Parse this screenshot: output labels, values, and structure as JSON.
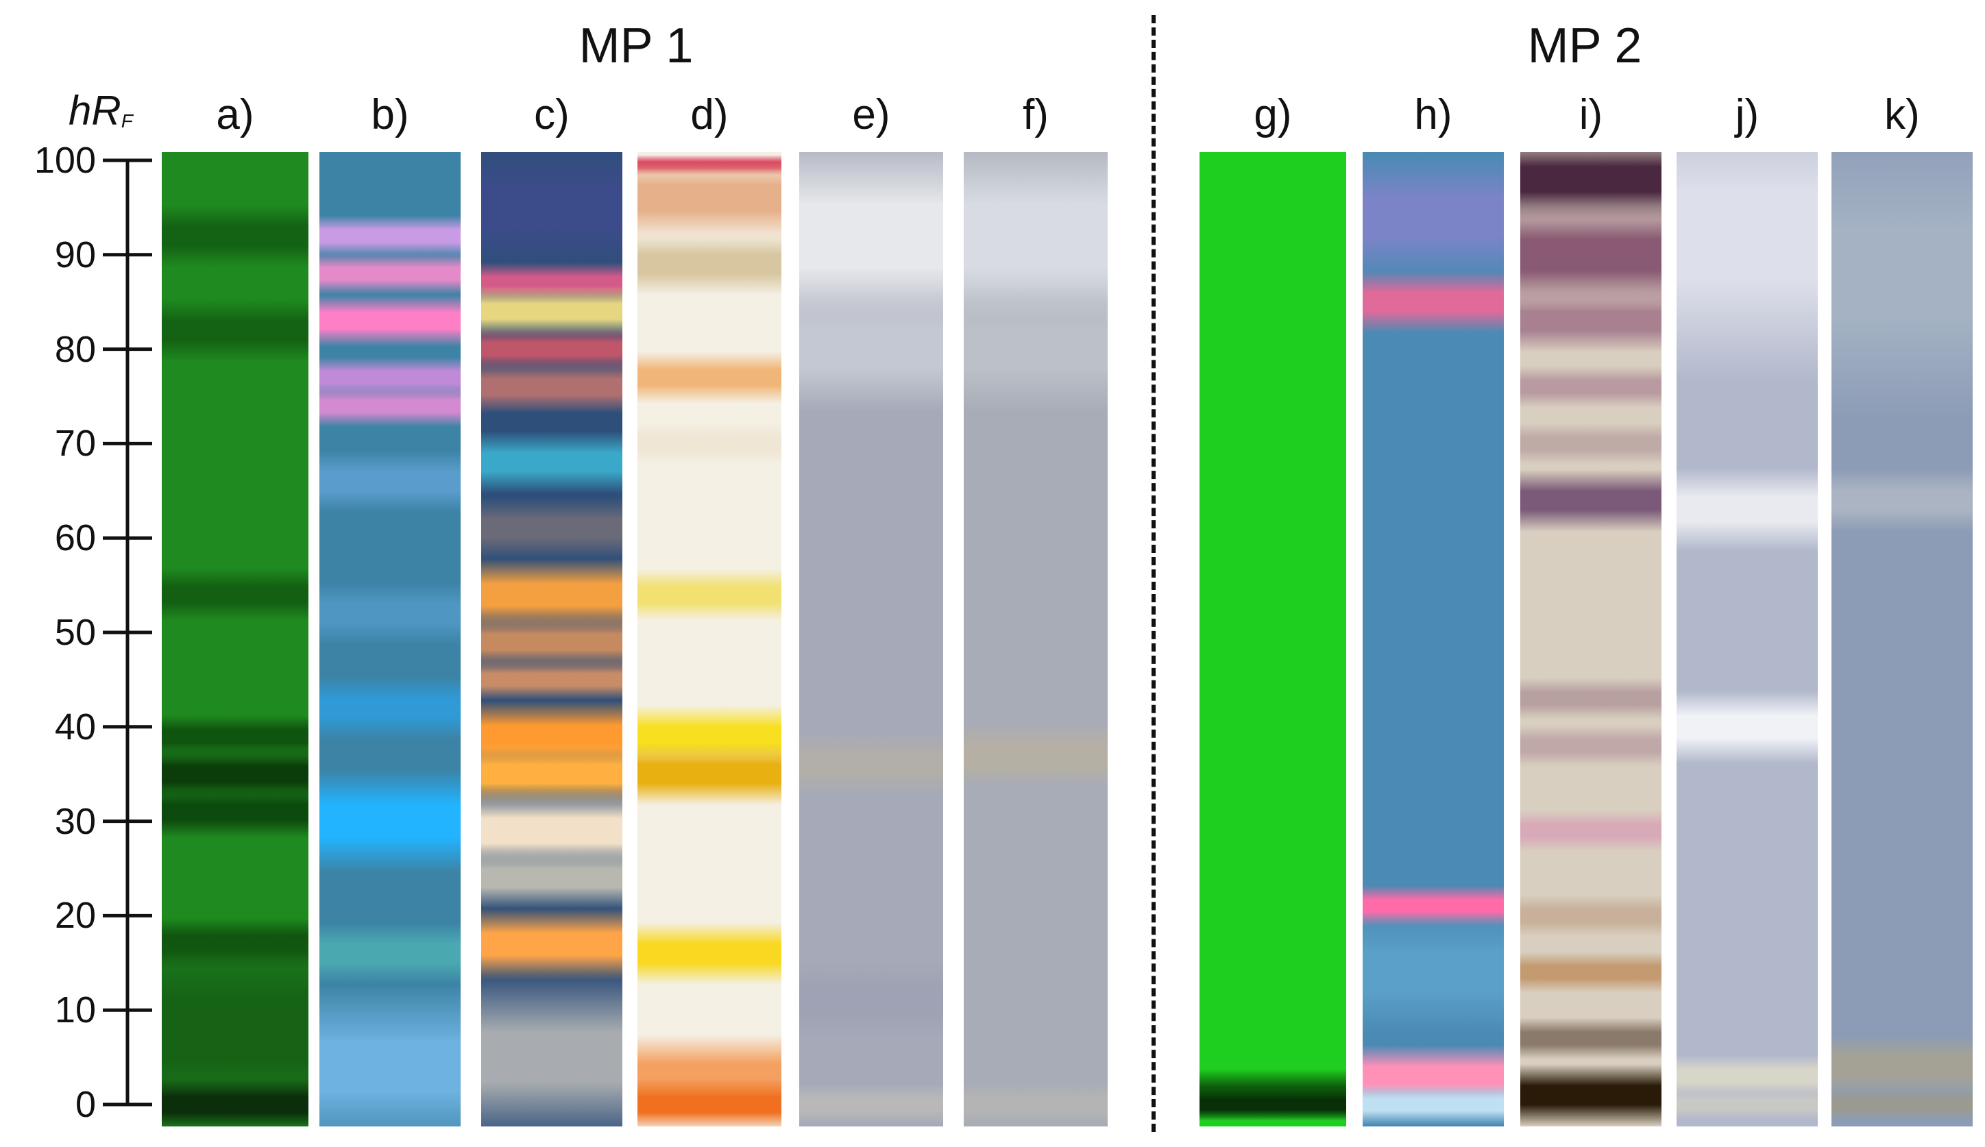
{
  "figure": {
    "groups": [
      {
        "title": "MP 1"
      },
      {
        "title": "MP 2"
      }
    ],
    "axis": {
      "label_main": "hR",
      "label_sub": "F",
      "ticks": [
        "100",
        "90",
        "80",
        "70",
        "60",
        "50",
        "40",
        "30",
        "20",
        "10",
        "0"
      ],
      "range": [
        0,
        100
      ]
    },
    "lanes": [
      {
        "label": "a)",
        "base": "#1f8a1f",
        "bands": [
          {
            "rf": 92,
            "w": 3,
            "color": "#146214"
          },
          {
            "rf": 82,
            "w": 3,
            "color": "#146214"
          },
          {
            "rf": 54,
            "w": 2.5,
            "color": "#136013"
          },
          {
            "rf": 39,
            "w": 2,
            "color": "#0f540f"
          },
          {
            "rf": 35,
            "w": 2.5,
            "color": "#0a3d0a"
          },
          {
            "rf": 31,
            "w": 2.5,
            "color": "#0d4a0d"
          },
          {
            "rf": 17,
            "w": 2.5,
            "color": "#0f520f"
          },
          {
            "rf": 8,
            "w": 10,
            "color": "#166316"
          },
          {
            "rf": 0,
            "w": 2.5,
            "color": "#0b2f0b"
          }
        ]
      },
      {
        "label": "b)",
        "base": "#3c83a6",
        "bands": [
          {
            "rf": 92,
            "w": 2,
            "color": "#c99be6"
          },
          {
            "rf": 88,
            "w": 2,
            "color": "#e58ac8"
          },
          {
            "rf": 83,
            "w": 2.5,
            "color": "#ff7fc7"
          },
          {
            "rf": 77,
            "w": 2,
            "color": "#c08ad8"
          },
          {
            "rf": 74,
            "w": 2,
            "color": "#d48ad0"
          },
          {
            "rf": 66,
            "w": 3,
            "color": "#5a9ccc"
          },
          {
            "rf": 52,
            "w": 3,
            "color": "#4f96c3"
          },
          {
            "rf": 42,
            "w": 3,
            "color": "#2f9ad6"
          },
          {
            "rf": 30,
            "w": 5,
            "color": "#22b4ff"
          },
          {
            "rf": 16,
            "w": 3,
            "color": "#4aa8b0"
          },
          {
            "rf": 4,
            "w": 8,
            "color": "#6db2e0"
          }
        ]
      },
      {
        "label": "c)",
        "base": "#2e4f7a",
        "bands": [
          {
            "rf": 95,
            "w": 6,
            "color": "#3c4b8a"
          },
          {
            "rf": 87,
            "w": 2,
            "color": "#d45a8a"
          },
          {
            "rf": 84,
            "w": 2.5,
            "color": "#e6d680"
          },
          {
            "rf": 80,
            "w": 2,
            "color": "#c0566a"
          },
          {
            "rf": 76,
            "w": 2.5,
            "color": "#b07070"
          },
          {
            "rf": 68,
            "w": 3,
            "color": "#3aa8c8"
          },
          {
            "rf": 61,
            "w": 3,
            "color": "#6a6a78"
          },
          {
            "rf": 54,
            "w": 3.5,
            "color": "#f5a040"
          },
          {
            "rf": 49,
            "w": 2.5,
            "color": "#c68a60"
          },
          {
            "rf": 45,
            "w": 2,
            "color": "#c88c66"
          },
          {
            "rf": 39,
            "w": 3.5,
            "color": "#ff9a30"
          },
          {
            "rf": 35,
            "w": 3,
            "color": "#ffb040"
          },
          {
            "rf": 29,
            "w": 4,
            "color": "#f2e0c8"
          },
          {
            "rf": 24,
            "w": 3,
            "color": "#b8b8b0"
          },
          {
            "rf": 17,
            "w": 3.5,
            "color": "#ffa548"
          },
          {
            "rf": 5,
            "w": 8,
            "color": "#a8acb0"
          }
        ]
      },
      {
        "label": "d)",
        "base": "#f4f0e4",
        "bands": [
          {
            "rf": 99.5,
            "w": 1,
            "color": "#d8305a"
          },
          {
            "rf": 96,
            "w": 4,
            "color": "#e6b08a"
          },
          {
            "rf": 89,
            "w": 3,
            "color": "#d8c6a0"
          },
          {
            "rf": 77,
            "w": 2.5,
            "color": "#f0b678"
          },
          {
            "rf": 70,
            "w": 2,
            "color": "#efe6d4"
          },
          {
            "rf": 54,
            "w": 2.5,
            "color": "#f2e070"
          },
          {
            "rf": 39,
            "w": 3,
            "color": "#f8e020"
          },
          {
            "rf": 35,
            "w": 3,
            "color": "#e8b010"
          },
          {
            "rf": 16,
            "w": 3,
            "color": "#f8d820"
          },
          {
            "rf": 3,
            "w": 4,
            "color": "#f4a060"
          },
          {
            "rf": 0,
            "w": 2.5,
            "color": "#f07020"
          }
        ]
      },
      {
        "label": "e)",
        "base": "#a6aab8",
        "bands": [
          {
            "rf": 92,
            "w": 10,
            "color": "#e6e8ec"
          },
          {
            "rf": 80,
            "w": 6,
            "color": "#c4c8d2"
          },
          {
            "rf": 36,
            "w": 3,
            "color": "#b2aea8"
          },
          {
            "rf": 11,
            "w": 4,
            "color": "#9ea2b4"
          },
          {
            "rf": 0,
            "w": 2,
            "color": "#b8b8b8"
          }
        ]
      },
      {
        "label": "f)",
        "base": "#a8acb6",
        "bands": [
          {
            "rf": 92,
            "w": 10,
            "color": "#d8dce2"
          },
          {
            "rf": 80,
            "w": 6,
            "color": "#bcc0c8"
          },
          {
            "rf": 37,
            "w": 3,
            "color": "#b6b0a4"
          },
          {
            "rf": 0,
            "w": 2,
            "color": "#b4b4b4"
          }
        ]
      },
      {
        "label": "g)",
        "base": "#1fcf1f",
        "bands": [
          {
            "rf": 1,
            "w": 2.5,
            "color": "#0d5a0d"
          },
          {
            "rf": 0,
            "w": 1.5,
            "color": "#082f08"
          }
        ]
      },
      {
        "label": "h)",
        "base": "#4a8ab4",
        "bands": [
          {
            "rf": 94,
            "w": 6,
            "color": "#7c84c8"
          },
          {
            "rf": 85,
            "w": 3,
            "color": "#e06a9a"
          },
          {
            "rf": 21,
            "w": 2,
            "color": "#ff6aa8"
          },
          {
            "rf": 14,
            "w": 6,
            "color": "#5aa0c8"
          },
          {
            "rf": 3,
            "w": 3,
            "color": "#ff90b8"
          },
          {
            "rf": 0,
            "w": 2,
            "color": "#bfe0f2"
          }
        ]
      },
      {
        "label": "i)",
        "base": "#d9cfc0",
        "bands": [
          {
            "rf": 98,
            "w": 4,
            "color": "#4a2840"
          },
          {
            "rf": 90,
            "w": 5,
            "color": "#8a5a74"
          },
          {
            "rf": 83,
            "w": 3,
            "color": "#a88090"
          },
          {
            "rf": 76,
            "w": 2,
            "color": "#b89aa0"
          },
          {
            "rf": 70,
            "w": 2,
            "color": "#c0aaa8"
          },
          {
            "rf": 64,
            "w": 3,
            "color": "#7a5a78"
          },
          {
            "rf": 43,
            "w": 2,
            "color": "#b8a0a0"
          },
          {
            "rf": 38,
            "w": 2,
            "color": "#c0a8a8"
          },
          {
            "rf": 29,
            "w": 2,
            "color": "#d8aab8"
          },
          {
            "rf": 20,
            "w": 2,
            "color": "#c8b09a"
          },
          {
            "rf": 14,
            "w": 2,
            "color": "#c49a70"
          },
          {
            "rf": 7,
            "w": 2,
            "color": "#8a7a6a"
          },
          {
            "rf": 1,
            "w": 3,
            "color": "#2a1a08"
          }
        ]
      },
      {
        "label": "j)",
        "base": "#b2b8cc",
        "bands": [
          {
            "rf": 92,
            "w": 14,
            "color": "#dde0ea"
          },
          {
            "rf": 63,
            "w": 4,
            "color": "#e8eaf0"
          },
          {
            "rf": 40,
            "w": 3.5,
            "color": "#f0f2f6"
          },
          {
            "rf": 3,
            "w": 2,
            "color": "#d8d6c8"
          },
          {
            "rf": 0,
            "w": 1.5,
            "color": "#c8c8c4"
          }
        ]
      },
      {
        "label": "k)",
        "base": "#8c9cb6",
        "bands": [
          {
            "rf": 88,
            "w": 14,
            "color": "#a4b2c4"
          },
          {
            "rf": 64,
            "w": 3,
            "color": "#aab4c2"
          },
          {
            "rf": 4,
            "w": 3,
            "color": "#a4a294"
          },
          {
            "rf": 0,
            "w": 1.5,
            "color": "#9a9a90"
          }
        ]
      }
    ]
  }
}
